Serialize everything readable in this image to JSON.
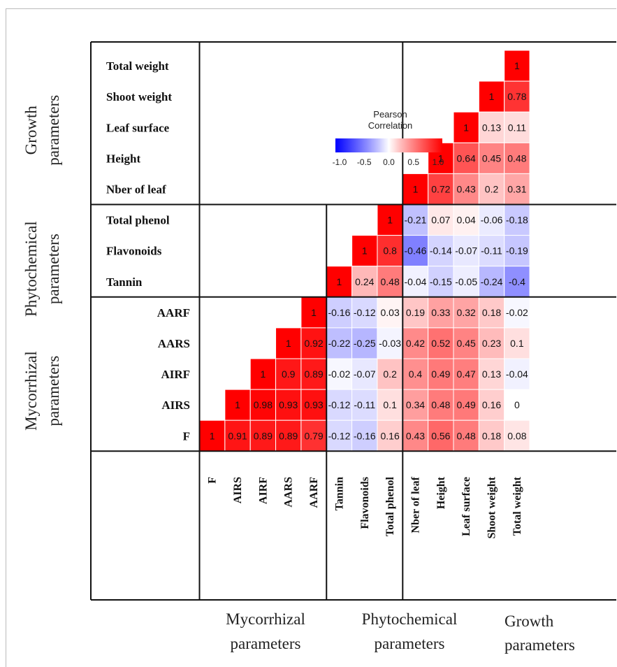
{
  "chart_data": {
    "type": "heatmap",
    "title": "",
    "variables": [
      "F",
      "AIRS",
      "AIRF",
      "AARS",
      "AARF",
      "Tannin",
      "Flavonoids",
      "Total phenol",
      "Nber of leaf",
      "Height",
      "Leaf surface",
      "Shoot weight",
      "Total weight"
    ],
    "groups": [
      {
        "name": "Mycorrhizal parameters",
        "members": [
          "F",
          "AIRS",
          "AIRF",
          "AARS",
          "AARF"
        ],
        "row_label_lines": [
          "Mycorrhizal",
          "parameters"
        ],
        "col_label_lines": [
          "Mycorrhizal",
          "parameters"
        ]
      },
      {
        "name": "Phytochemical parameters",
        "members": [
          "Tannin",
          "Flavonoids",
          "Total phenol"
        ],
        "row_label_lines": [
          "Phytochemical",
          "parameters"
        ],
        "col_label_lines": [
          "Phytochemical",
          "parameters"
        ]
      },
      {
        "name": "Growth parameters",
        "members": [
          "Nber of leaf",
          "Height",
          "Leaf surface",
          "Shoot weight",
          "Total weight"
        ],
        "row_label_lines": [
          "Growth",
          "parameters"
        ],
        "col_label_lines": [
          "Growth",
          "parameters"
        ]
      }
    ],
    "rows": [
      {
        "name": "Total weight",
        "values": [
          1
        ]
      },
      {
        "name": "Shoot weight",
        "values": [
          1,
          0.78
        ]
      },
      {
        "name": "Leaf surface",
        "values": [
          1,
          0.13,
          0.11
        ]
      },
      {
        "name": "Height",
        "values": [
          1,
          0.64,
          0.45,
          0.48
        ]
      },
      {
        "name": "Nber of leaf",
        "values": [
          1,
          0.72,
          0.43,
          0.2,
          0.31
        ]
      },
      {
        "name": "Total phenol",
        "values": [
          1,
          -0.21,
          0.07,
          0.04,
          -0.06,
          -0.18
        ]
      },
      {
        "name": "Flavonoids",
        "values": [
          1,
          0.8,
          -0.46,
          -0.14,
          -0.07,
          -0.11,
          -0.19
        ]
      },
      {
        "name": "Tannin",
        "values": [
          1,
          0.24,
          0.48,
          -0.04,
          -0.15,
          -0.05,
          -0.24,
          -0.4
        ]
      },
      {
        "name": "AARF",
        "values": [
          1,
          -0.16,
          -0.12,
          0.03,
          0.19,
          0.33,
          0.32,
          0.18,
          -0.02
        ]
      },
      {
        "name": "AARS",
        "values": [
          1,
          0.92,
          -0.22,
          -0.25,
          -0.03,
          0.42,
          0.52,
          0.45,
          0.23,
          0.1
        ]
      },
      {
        "name": "AIRF",
        "values": [
          1,
          0.9,
          0.89,
          -0.02,
          -0.07,
          0.2,
          0.4,
          0.49,
          0.47,
          0.13,
          -0.04
        ]
      },
      {
        "name": "AIRS",
        "values": [
          1,
          0.98,
          0.93,
          0.93,
          -0.12,
          -0.11,
          0.1,
          0.34,
          0.48,
          0.49,
          0.16,
          0
        ]
      },
      {
        "name": "F",
        "values": [
          1,
          0.91,
          0.89,
          0.89,
          0.79,
          -0.12,
          -0.16,
          0.16,
          0.43,
          0.56,
          0.48,
          0.18,
          0.08
        ]
      }
    ],
    "legend": {
      "title_lines": [
        "Pearson",
        "Correlation"
      ],
      "ticks": [
        "-1.0",
        "-0.5",
        "0.0",
        "0.5",
        "1.0"
      ],
      "range": [
        -1,
        1
      ],
      "colors": {
        "low": "#0000ff",
        "mid": "#ffffff",
        "high": "#ff0000"
      }
    }
  }
}
